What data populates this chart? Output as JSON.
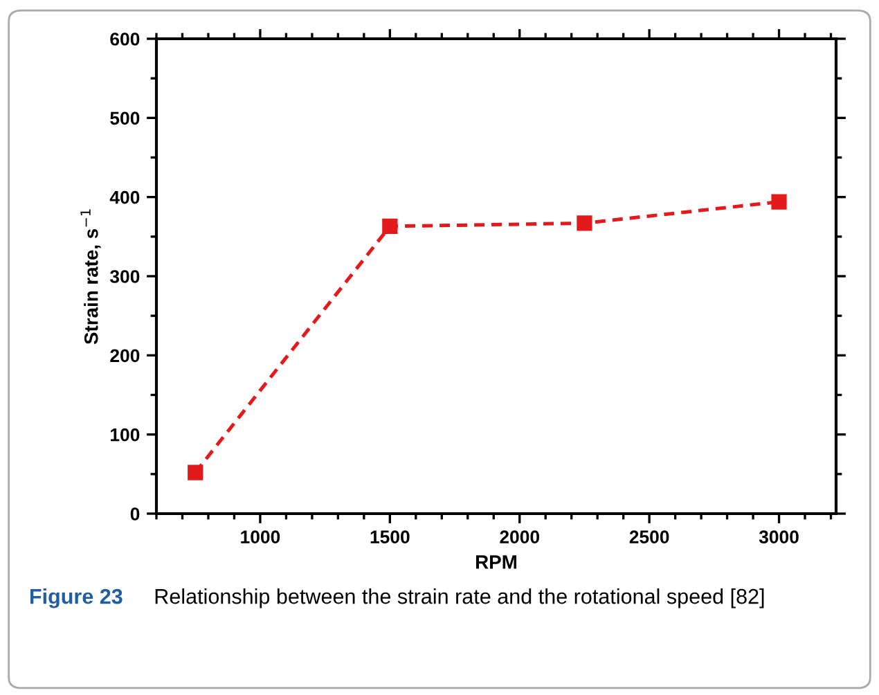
{
  "chart_data": {
    "type": "line",
    "xlabel": "RPM",
    "ylabel": "Strain rate, s$^{−1}$",
    "x": [
      750,
      1500,
      2250,
      3000
    ],
    "series": [
      {
        "color": "#e31a1c",
        "values": [
          52,
          363,
          367,
          394
        ]
      }
    ],
    "xlim": [
      600,
      3220
    ],
    "xticks": [
      1000,
      1500,
      2000,
      2500,
      3000
    ],
    "ylim": [
      0,
      600
    ],
    "yticks": [
      0,
      100,
      200,
      300,
      400,
      500,
      600
    ],
    "marker": "square",
    "line_style": "dashed",
    "grid": false,
    "legend": false,
    "annotations": [
      "Figure 23",
      "Relationship between the strain rate and the rotational speed [82]"
    ]
  }
}
